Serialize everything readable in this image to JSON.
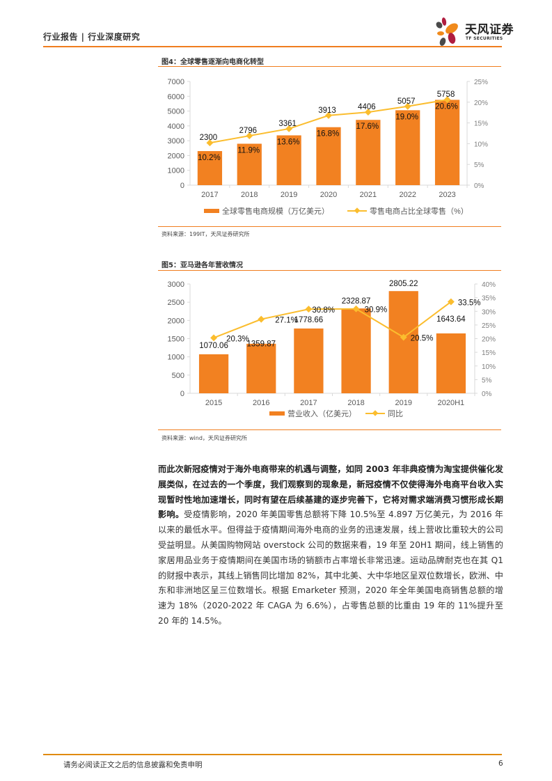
{
  "header": {
    "title": "行业报告 | 行业深度研究",
    "logo_cn": "天风证券",
    "logo_en": "TF SECURITIES"
  },
  "figure4": {
    "title": "图4：全球零售逐渐向电商化转型",
    "source": "资料来源：199IT，天风证券研究所"
  },
  "figure5": {
    "title": "图5：亚马逊各年营收情况",
    "source": "资料来源：wind，天风证券研究所"
  },
  "chart_data": [
    {
      "type": "bar",
      "title": "图4：全球零售逐渐向电商化转型",
      "categories": [
        "2017",
        "2018",
        "2019",
        "2020",
        "2021",
        "2022",
        "2023"
      ],
      "series": [
        {
          "name": "全球零售电商规模（万亿美元）",
          "type": "bar",
          "axis": "left",
          "values": [
            2300,
            2796,
            3361,
            3913,
            4406,
            5057,
            5758
          ],
          "color": "#f28121"
        },
        {
          "name": "零售电商占比全球零售（%）",
          "type": "line",
          "axis": "right",
          "values": [
            10.2,
            11.9,
            13.6,
            16.8,
            17.6,
            19.0,
            20.6
          ],
          "color": "#fbbd2e"
        }
      ],
      "y_left": {
        "ticks": [
          "0",
          "1000",
          "2000",
          "3000",
          "4000",
          "5000",
          "6000",
          "7000"
        ],
        "ylim": [
          0,
          7000
        ]
      },
      "y_right": {
        "ticks": [
          "0%",
          "5%",
          "10%",
          "15%",
          "20%",
          "25%"
        ],
        "ylim": [
          0,
          25
        ]
      },
      "bar_labels": [
        "2300",
        "2796",
        "3361",
        "3913",
        "4406",
        "5057",
        "5758"
      ],
      "line_labels": [
        "10.2%",
        "11.9%",
        "13.6%",
        "16.8%",
        "17.6%",
        "19.0%",
        "20.6%"
      ],
      "legend": [
        "全球零售电商规模（万亿美元）",
        "零售电商占比全球零售（%）"
      ],
      "legend_position": "bottom",
      "grid": false
    },
    {
      "type": "bar",
      "title": "图5：亚马逊各年营收情况",
      "categories": [
        "2015",
        "2016",
        "2017",
        "2018",
        "2019",
        "2020H1"
      ],
      "series": [
        {
          "name": "营业收入（亿美元）",
          "type": "bar",
          "axis": "left",
          "values": [
            1070.06,
            1359.87,
            1778.66,
            2328.87,
            2805.22,
            1643.64
          ],
          "color": "#f28121"
        },
        {
          "name": "同比",
          "type": "line",
          "axis": "right",
          "values": [
            20.3,
            27.1,
            30.8,
            30.9,
            20.5,
            33.5
          ],
          "color": "#fbbd2e"
        }
      ],
      "y_left": {
        "ticks": [
          "0",
          "500",
          "1000",
          "1500",
          "2000",
          "2500",
          "3000"
        ],
        "ylim": [
          0,
          3000
        ]
      },
      "y_right": {
        "ticks": [
          "0%",
          "5%",
          "10%",
          "15%",
          "20%",
          "25%",
          "30%",
          "35%",
          "40%"
        ],
        "ylim": [
          0,
          40
        ]
      },
      "bar_labels": [
        "1070.06",
        "1359.87",
        "1778.66",
        "2328.87",
        "2805.22",
        "1643.64"
      ],
      "line_labels": [
        "20.3%",
        "27.1%",
        "30.8%",
        "30.9%",
        "20.5%",
        "33.5%"
      ],
      "legend": [
        "营业收入（亿美元）",
        "同比"
      ],
      "legend_position": "bottom",
      "grid": false
    }
  ],
  "body": {
    "bold_lead": "而此次新冠疫情对于海外电商带来的机遇与调整，如同 2003 年非典疫情为淘宝提供催化发展类似，在过去的一个季度，我们观察到的现象是，新冠疫情不仅使得海外电商平台收入实现暂时性地加速增长，同时有望在后续基建的逐步完善下，它将对需求端消费习惯形成长期影响。",
    "rest": "受疫情影响，2020 年美国零售总额将下降 10.5%至 4.897 万亿美元，为 2016 年以来的最低水平。但得益于疫情期间海外电商的业务的迅速发展，线上营收比重较大的公司受益明显。从美国购物网站 overstock 公司的数据来看，19 年至 20H1 期间，线上销售的家居用品业务于疫情期间在美国市场的销额市占率增长非常迅速。运动品牌耐克也在其 Q1 的财报中表示，其线上销售同比增加 82%，其中北美、大中华地区呈双位数增长，欧洲、中东和非洲地区呈三位数增长。根据 Emarketer 预测，2020 年全年美国电商销售总额的增速为 18%（2020-2022 年 CAGA 为 6.6%），占零售总额的比重由 19 年的 11%提升至 20 年的 14.5%。"
  },
  "footer": {
    "disclaimer": "请务必阅读正文之后的信息披露和免责申明",
    "page": "6"
  }
}
